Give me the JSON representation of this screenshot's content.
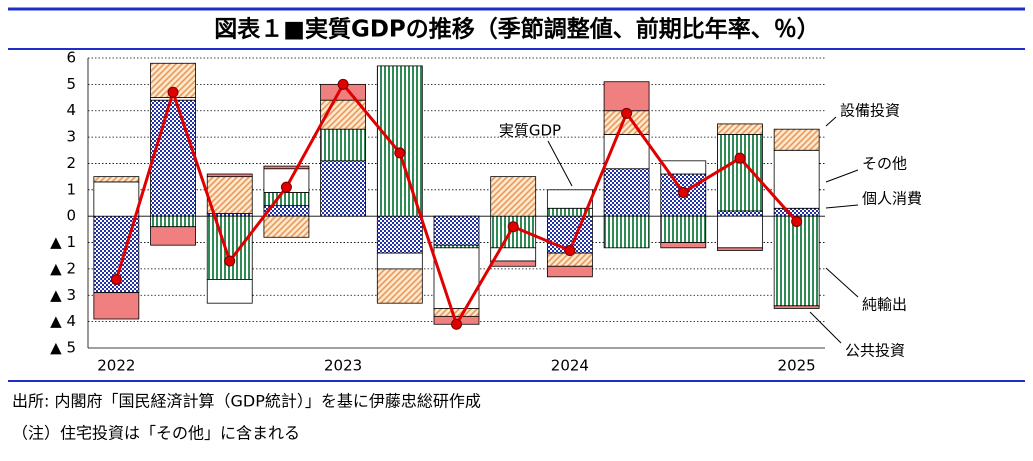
{
  "chart_data": {
    "type": "stacked-bar-line",
    "title": "図表１■実質GDPの推移（季節調整値、前期比年率、％）",
    "categories": [
      "2022",
      null,
      null,
      null,
      "2023",
      null,
      null,
      null,
      "2024",
      null,
      null,
      null,
      "2025"
    ],
    "series": [
      {
        "name": "個人消費",
        "color": "#2233aa",
        "pattern": "checker",
        "values": [
          -2.9,
          4.4,
          0.1,
          0.4,
          2.1,
          -1.4,
          -1.1,
          0,
          -1.4,
          1.8,
          1.6,
          0.2,
          0.3
        ]
      },
      {
        "name": "純輸出",
        "color": "#2f8a55",
        "pattern": "vstripe",
        "values": [
          0,
          -0.4,
          -2.4,
          0.5,
          1.2,
          5.7,
          -0.1,
          -1.2,
          0.3,
          -1.2,
          -1.0,
          2.9,
          -3.4
        ]
      },
      {
        "name": "その他",
        "color": "#ffffff",
        "pattern": "solid",
        "values": [
          1.3,
          0.1,
          -0.9,
          0.9,
          0,
          -0.6,
          -2.3,
          -0.5,
          0.7,
          1.3,
          0.5,
          -1.2,
          2.2
        ]
      },
      {
        "name": "設備投資",
        "color": "#e89a5a",
        "pattern": "hatch",
        "values": [
          0.2,
          1.3,
          1.4,
          -0.8,
          1.1,
          -1.3,
          -0.3,
          1.5,
          -0.5,
          0.9,
          0,
          0.4,
          0.8
        ]
      },
      {
        "name": "公共投資",
        "color": "#f08080",
        "pattern": "solid",
        "values": [
          -1.0,
          -0.7,
          0.1,
          0.1,
          0.6,
          0,
          -0.3,
          -0.2,
          -0.4,
          1.1,
          -0.2,
          -0.1,
          -0.1
        ]
      }
    ],
    "line": {
      "name": "実質GDP",
      "color": "#e00000",
      "values": [
        -2.4,
        4.7,
        -1.7,
        1.1,
        5.0,
        2.4,
        -4.1,
        -0.4,
        -1.3,
        3.9,
        0.9,
        2.2,
        -0.2
      ]
    },
    "ylim": [
      -5,
      6
    ],
    "yticks": [
      6,
      5,
      4,
      3,
      2,
      1,
      0,
      {
        "value": -1,
        "label": "▲ 1"
      },
      {
        "value": -2,
        "label": "▲ 2"
      },
      {
        "value": -3,
        "label": "▲ 3"
      },
      {
        "value": -4,
        "label": "▲ 4"
      },
      {
        "value": -5,
        "label": "▲ 5"
      }
    ],
    "grid": true,
    "notes": [
      "出所: 内閣府「国民経済計算（GDP統計）」を基に伊藤忠総研作成",
      "（注）住宅投資は「その他」に含まれる"
    ]
  }
}
